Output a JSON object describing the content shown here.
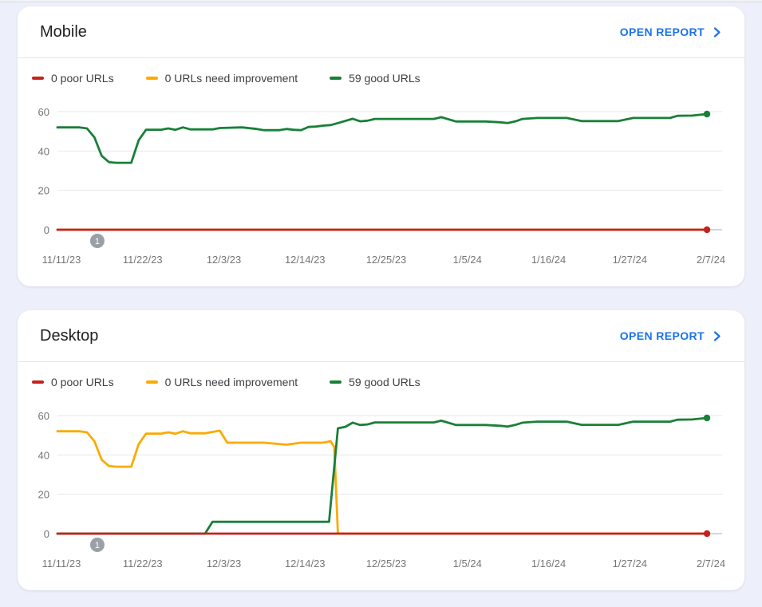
{
  "page": {
    "background": "#edf0fa",
    "top_strip": {
      "fill": "#f1f3f7",
      "border": "#d7dae1"
    }
  },
  "colors": {
    "poor": "#c5221f",
    "needs_improvement": "#f9ab00",
    "good": "#188038",
    "link": "#1a73e8",
    "grid": "#e7e7e7",
    "zero_line": "#adadad",
    "axis_label": "#757575",
    "badge": "#9aa0a6",
    "title_text": "#202124",
    "legend_text": "#3c4043",
    "divider": "#e6e6e6",
    "card_bg": "#ffffff"
  },
  "cards": [
    {
      "title": "Mobile",
      "open_report_label": "OPEN REPORT",
      "legend": [
        {
          "label": "0 poor URLs",
          "color": "#c5221f"
        },
        {
          "label": "0 URLs need improvement",
          "color": "#f9ab00"
        },
        {
          "label": "59 good URLs",
          "color": "#188038"
        }
      ]
    },
    {
      "title": "Desktop",
      "open_report_label": "OPEN REPORT",
      "legend": [
        {
          "label": "0 poor URLs",
          "color": "#c5221f"
        },
        {
          "label": "0 URLs need improvement",
          "color": "#f9ab00"
        },
        {
          "label": "59 good URLs",
          "color": "#188038"
        }
      ]
    }
  ],
  "chart_data": [
    {
      "type": "line",
      "title": "Mobile",
      "x_axis": {
        "unit": "day",
        "tick_days": [
          0,
          11,
          22,
          33,
          44,
          55,
          66,
          77,
          88
        ],
        "tick_labels": [
          "11/11/23",
          "11/22/23",
          "12/3/23",
          "12/14/23",
          "12/25/23",
          "1/5/24",
          "1/16/24",
          "1/27/24",
          "2/7/24"
        ]
      },
      "y_axis": {
        "ticks": [
          0,
          20,
          40,
          60
        ],
        "range": [
          0,
          62
        ]
      },
      "series": [
        {
          "key": "needs_improvement",
          "name": "URLs need improvement",
          "color": "#f9ab00",
          "current": 0,
          "end_dot": false,
          "points": [
            [
              0,
              0
            ],
            [
              88,
              0
            ]
          ]
        },
        {
          "key": "good",
          "name": "good URLs",
          "color": "#188038",
          "current": 59,
          "end_dot": true,
          "points": [
            [
              0,
              52
            ],
            [
              3,
              52
            ],
            [
              4,
              51.5
            ],
            [
              5,
              47
            ],
            [
              6,
              37.5
            ],
            [
              7,
              34.3
            ],
            [
              8,
              34
            ],
            [
              10,
              34
            ],
            [
              11,
              45.5
            ],
            [
              12,
              50.8
            ],
            [
              14,
              50.8
            ],
            [
              15,
              51.5
            ],
            [
              16,
              50.8
            ],
            [
              17,
              52
            ],
            [
              18,
              51
            ],
            [
              21,
              51
            ],
            [
              22,
              51.7
            ],
            [
              25,
              52
            ],
            [
              27,
              51.2
            ],
            [
              28,
              50.6
            ],
            [
              30,
              50.6
            ],
            [
              31,
              51.2
            ],
            [
              32,
              50.8
            ],
            [
              33,
              50.6
            ],
            [
              34,
              52.2
            ],
            [
              35,
              52.4
            ],
            [
              36,
              52.9
            ],
            [
              37,
              53.2
            ],
            [
              38,
              54.2
            ],
            [
              40,
              56.4
            ],
            [
              41,
              55.1
            ],
            [
              42,
              55.4
            ],
            [
              43,
              56.3
            ],
            [
              45,
              56.3
            ],
            [
              51,
              56.3
            ],
            [
              52,
              57.2
            ],
            [
              54,
              55
            ],
            [
              58,
              55
            ],
            [
              60,
              54.6
            ],
            [
              61,
              54.2
            ],
            [
              62,
              55
            ],
            [
              63,
              56.3
            ],
            [
              65,
              56.8
            ],
            [
              69,
              56.8
            ],
            [
              71,
              55.2
            ],
            [
              76,
              55.2
            ],
            [
              78,
              56.8
            ],
            [
              83,
              56.8
            ],
            [
              84,
              57.9
            ],
            [
              86,
              58
            ],
            [
              88,
              58.8
            ]
          ]
        },
        {
          "key": "poor",
          "name": "poor URLs",
          "color": "#c5221f",
          "current": 0,
          "end_dot": true,
          "points": [
            [
              0,
              0
            ],
            [
              88,
              0
            ]
          ]
        }
      ],
      "annotation": {
        "label": "1",
        "day": 5.4
      }
    },
    {
      "type": "line",
      "title": "Desktop",
      "x_axis": {
        "unit": "day",
        "tick_days": [
          0,
          11,
          22,
          33,
          44,
          55,
          66,
          77,
          88
        ],
        "tick_labels": [
          "11/11/23",
          "11/22/23",
          "12/3/23",
          "12/14/23",
          "12/25/23",
          "1/5/24",
          "1/16/24",
          "1/27/24",
          "2/7/24"
        ]
      },
      "y_axis": {
        "ticks": [
          0,
          20,
          40,
          60
        ],
        "range": [
          0,
          62
        ]
      },
      "series": [
        {
          "key": "needs_improvement",
          "name": "URLs need improvement",
          "color": "#f9ab00",
          "current": 0,
          "end_dot": false,
          "points": [
            [
              0,
              52
            ],
            [
              3,
              52
            ],
            [
              4,
              51.5
            ],
            [
              5,
              47
            ],
            [
              6,
              37.5
            ],
            [
              7,
              34.3
            ],
            [
              8,
              34
            ],
            [
              10,
              34
            ],
            [
              11,
              45.5
            ],
            [
              12,
              50.8
            ],
            [
              14,
              50.8
            ],
            [
              15,
              51.5
            ],
            [
              16,
              50.8
            ],
            [
              17,
              52
            ],
            [
              18,
              51
            ],
            [
              20,
              51
            ],
            [
              21,
              51.7
            ],
            [
              22,
              52.3
            ],
            [
              23,
              46.2
            ],
            [
              28,
              46.2
            ],
            [
              31,
              45.2
            ],
            [
              33,
              46.2
            ],
            [
              36,
              46.2
            ],
            [
              37,
              47
            ],
            [
              37.5,
              44
            ],
            [
              38,
              0
            ],
            [
              88,
              0
            ]
          ]
        },
        {
          "key": "good",
          "name": "good URLs",
          "color": "#188038",
          "current": 59,
          "end_dot": true,
          "points": [
            [
              0,
              0
            ],
            [
              20,
              0
            ],
            [
              21,
              6
            ],
            [
              25,
              6
            ],
            [
              36.8,
              6
            ],
            [
              38,
              53.5
            ],
            [
              39,
              54.3
            ],
            [
              40,
              56.4
            ],
            [
              41,
              55.2
            ],
            [
              42,
              55.5
            ],
            [
              43,
              56.5
            ],
            [
              45,
              56.5
            ],
            [
              51,
              56.5
            ],
            [
              52,
              57.4
            ],
            [
              54,
              55.2
            ],
            [
              58,
              55.2
            ],
            [
              60,
              54.8
            ],
            [
              61,
              54.4
            ],
            [
              62,
              55.2
            ],
            [
              63,
              56.4
            ],
            [
              65,
              56.9
            ],
            [
              69,
              56.9
            ],
            [
              71,
              55.3
            ],
            [
              76,
              55.3
            ],
            [
              78,
              56.9
            ],
            [
              83,
              56.9
            ],
            [
              84,
              57.9
            ],
            [
              86,
              58
            ],
            [
              88,
              58.8
            ]
          ]
        },
        {
          "key": "poor",
          "name": "poor URLs",
          "color": "#c5221f",
          "current": 0,
          "end_dot": true,
          "points": [
            [
              0,
              0
            ],
            [
              88,
              0
            ]
          ]
        }
      ],
      "annotation": {
        "label": "1",
        "day": 5.4
      }
    }
  ]
}
